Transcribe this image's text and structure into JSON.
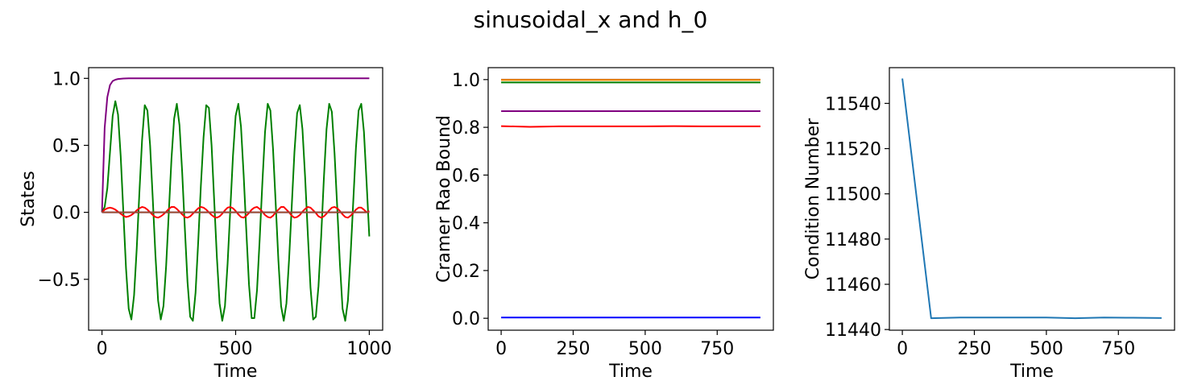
{
  "figure": {
    "title": "sinusoidal_x and h_0"
  },
  "chart_data": [
    {
      "type": "line",
      "xlabel": "Time",
      "ylabel": "States",
      "xlim": [
        -50,
        1050
      ],
      "ylim": [
        -0.88,
        1.08
      ],
      "xticks": [
        0,
        500,
        1000
      ],
      "xtick_labels": [
        "0",
        "500",
        "1000"
      ],
      "yticks": [
        -0.5,
        0.0,
        0.5,
        1.0
      ],
      "ytick_labels": [
        "−0.5",
        "0.0",
        "0.5",
        "1.0"
      ],
      "series": [
        {
          "color": "#800080",
          "x": [
            0,
            10,
            20,
            30,
            40,
            50,
            60,
            80,
            100,
            150,
            200,
            300,
            400,
            500,
            600,
            700,
            800,
            900,
            1000
          ],
          "y": [
            0.0,
            0.63,
            0.86,
            0.95,
            0.98,
            0.99,
            0.995,
            0.999,
            1.0,
            1.0,
            1.0,
            1.0,
            1.0,
            1.0,
            1.0,
            1.0,
            1.0,
            1.0,
            1.0
          ]
        },
        {
          "color": "#008000",
          "x": [
            0,
            10,
            20,
            30,
            40,
            50,
            60,
            70,
            80,
            90,
            100,
            110,
            120,
            130,
            140,
            150,
            160,
            170,
            180,
            190,
            200,
            210,
            220,
            230,
            240,
            250,
            260,
            270,
            280,
            290,
            300,
            310,
            320,
            330,
            340,
            350,
            360,
            370,
            380,
            390,
            400,
            410,
            420,
            430,
            440,
            450,
            460,
            470,
            480,
            490,
            500,
            510,
            520,
            530,
            540,
            550,
            560,
            570,
            580,
            590,
            600,
            610,
            620,
            630,
            640,
            650,
            660,
            670,
            680,
            690,
            700,
            710,
            720,
            730,
            740,
            750,
            760,
            770,
            780,
            790,
            800,
            810,
            820,
            830,
            840,
            850,
            860,
            870,
            880,
            890,
            900,
            910,
            920,
            930,
            940,
            950,
            960,
            970,
            980,
            990,
            1000
          ],
          "y": [
            0.0,
            0.04,
            0.18,
            0.45,
            0.72,
            0.83,
            0.73,
            0.42,
            0.0,
            -0.42,
            -0.72,
            -0.8,
            -0.62,
            -0.27,
            0.15,
            0.54,
            0.8,
            0.76,
            0.5,
            0.1,
            -0.32,
            -0.66,
            -0.8,
            -0.7,
            -0.4,
            0.0,
            0.4,
            0.7,
            0.81,
            0.65,
            0.3,
            -0.12,
            -0.52,
            -0.78,
            -0.81,
            -0.6,
            -0.22,
            0.2,
            0.56,
            0.8,
            0.78,
            0.5,
            0.08,
            -0.34,
            -0.68,
            -0.81,
            -0.7,
            -0.38,
            0.02,
            0.42,
            0.72,
            0.81,
            0.64,
            0.28,
            -0.14,
            -0.54,
            -0.79,
            -0.79,
            -0.58,
            -0.2,
            0.22,
            0.6,
            0.81,
            0.76,
            0.47,
            0.06,
            -0.36,
            -0.7,
            -0.81,
            -0.68,
            -0.35,
            0.05,
            0.45,
            0.74,
            0.8,
            0.62,
            0.26,
            -0.16,
            -0.56,
            -0.8,
            -0.78,
            -0.55,
            -0.18,
            0.25,
            0.62,
            0.81,
            0.75,
            0.44,
            0.04,
            -0.38,
            -0.72,
            -0.81,
            -0.66,
            -0.32,
            0.08,
            0.48,
            0.76,
            0.81,
            0.6,
            0.22,
            -0.18
          ]
        },
        {
          "color": "#ff0000",
          "x": [
            0,
            10,
            20,
            30,
            40,
            50,
            60,
            70,
            80,
            90,
            100,
            110,
            120,
            130,
            140,
            150,
            160,
            170,
            180,
            190,
            200,
            210,
            220,
            230,
            240,
            250,
            260,
            270,
            280,
            290,
            300,
            310,
            320,
            330,
            340,
            350,
            360,
            370,
            380,
            390,
            400,
            410,
            420,
            430,
            440,
            450,
            460,
            470,
            480,
            490,
            500,
            510,
            520,
            530,
            540,
            550,
            560,
            570,
            580,
            590,
            600,
            610,
            620,
            630,
            640,
            650,
            660,
            670,
            680,
            690,
            700,
            710,
            720,
            730,
            740,
            750,
            760,
            770,
            780,
            790,
            800,
            810,
            820,
            830,
            840,
            850,
            860,
            870,
            880,
            890,
            900,
            910,
            920,
            930,
            940,
            950,
            960,
            970,
            980,
            990,
            1000
          ],
          "y": [
            0.0,
            0.02,
            0.03,
            0.035,
            0.03,
            0.02,
            0.005,
            -0.01,
            -0.025,
            -0.035,
            -0.03,
            -0.02,
            -0.005,
            0.015,
            0.03,
            0.04,
            0.035,
            0.02,
            0.0,
            -0.02,
            -0.035,
            -0.04,
            -0.03,
            -0.015,
            0.005,
            0.025,
            0.04,
            0.04,
            0.025,
            0.005,
            -0.015,
            -0.035,
            -0.04,
            -0.03,
            -0.01,
            0.01,
            0.03,
            0.04,
            0.035,
            0.02,
            0.0,
            -0.02,
            -0.035,
            -0.04,
            -0.03,
            -0.01,
            0.015,
            0.035,
            0.04,
            0.03,
            0.01,
            -0.015,
            -0.035,
            -0.04,
            -0.025,
            -0.005,
            0.02,
            0.035,
            0.04,
            0.025,
            0.005,
            -0.02,
            -0.035,
            -0.04,
            -0.025,
            0.0,
            0.02,
            0.04,
            0.04,
            0.02,
            0.0,
            -0.025,
            -0.04,
            -0.035,
            -0.02,
            0.005,
            0.025,
            0.04,
            0.035,
            0.015,
            -0.005,
            -0.03,
            -0.04,
            -0.03,
            -0.01,
            0.015,
            0.035,
            0.04,
            0.03,
            0.01,
            -0.015,
            -0.035,
            -0.04,
            -0.025,
            -0.005,
            0.02,
            0.035,
            0.035,
            0.02,
            0.0,
            0.01
          ]
        },
        {
          "color": "#0000ff",
          "x": [
            0,
            1000
          ],
          "y": [
            0.0,
            0.0
          ]
        },
        {
          "color": "#a0522d",
          "x": [
            0,
            1000
          ],
          "y": [
            0.0,
            0.0
          ]
        }
      ]
    },
    {
      "type": "line",
      "xlabel": "Time",
      "ylabel": "Cramer Rao Bound",
      "xlim": [
        -45,
        945
      ],
      "ylim": [
        -0.05,
        1.05
      ],
      "xticks": [
        0,
        250,
        500,
        750
      ],
      "xtick_labels": [
        "0",
        "250",
        "500",
        "750"
      ],
      "yticks": [
        0.0,
        0.2,
        0.4,
        0.6,
        0.8,
        1.0
      ],
      "ytick_labels": [
        "0.0",
        "0.2",
        "0.4",
        "0.6",
        "0.8",
        "1.0"
      ],
      "series": [
        {
          "color": "#ff0000",
          "x": [
            0,
            100,
            200,
            300,
            400,
            500,
            600,
            700,
            800,
            900
          ],
          "y": [
            0.805,
            0.802,
            0.804,
            0.804,
            0.804,
            0.804,
            0.805,
            0.804,
            0.804,
            0.804
          ]
        },
        {
          "color": "#800080",
          "x": [
            0,
            900
          ],
          "y": [
            0.868,
            0.868
          ]
        },
        {
          "color": "#008000",
          "x": [
            0,
            900
          ],
          "y": [
            0.988,
            0.988
          ]
        },
        {
          "color": "#a0522d",
          "x": [
            0,
            900
          ],
          "y": [
            1.0,
            1.0
          ]
        },
        {
          "color": "#ff8c00",
          "x": [
            0,
            900
          ],
          "y": [
            0.998,
            0.998
          ]
        },
        {
          "color": "#0000ff",
          "x": [
            0,
            900
          ],
          "y": [
            0.003,
            0.003
          ]
        }
      ]
    },
    {
      "type": "line",
      "xlabel": "Time",
      "ylabel": "Condition Number",
      "xlim": [
        -45,
        945
      ],
      "ylim": [
        11439.7,
        11555.8
      ],
      "xticks": [
        0,
        250,
        500,
        750
      ],
      "xtick_labels": [
        "0",
        "250",
        "500",
        "750"
      ],
      "yticks": [
        11440,
        11460,
        11480,
        11500,
        11520,
        11540
      ],
      "ytick_labels": [
        "11440",
        "11460",
        "11480",
        "11500",
        "11520",
        "11540"
      ],
      "series": [
        {
          "color": "#1f77b4",
          "x": [
            0,
            100,
            200,
            300,
            400,
            500,
            600,
            700,
            800,
            900
          ],
          "y": [
            11551,
            11445,
            11445.3,
            11445.3,
            11445.3,
            11445.3,
            11445,
            11445.3,
            11445.2,
            11445.1
          ]
        }
      ]
    }
  ]
}
